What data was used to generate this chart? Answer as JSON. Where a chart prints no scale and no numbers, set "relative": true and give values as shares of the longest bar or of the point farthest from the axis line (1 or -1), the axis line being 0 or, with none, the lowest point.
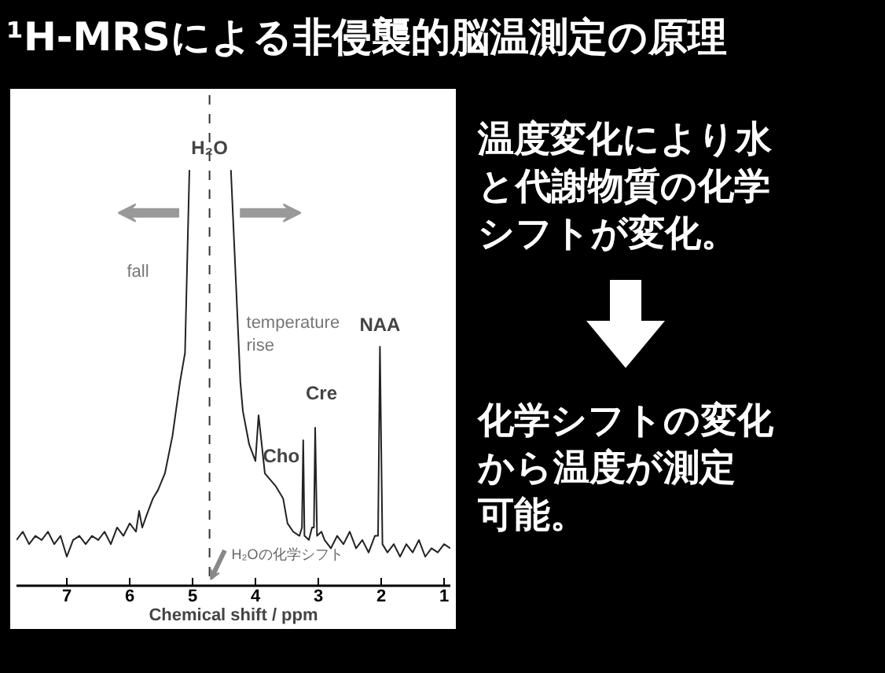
{
  "chart_data": {
    "type": "line",
    "title": "¹H-MRSによる非侵襲的脳温測定の原理",
    "xlabel": "Chemical shift / ppm",
    "relative": true,
    "xlim": [
      7.8,
      0.9
    ],
    "xticks": [
      7,
      6,
      5,
      4,
      3,
      2,
      1
    ],
    "tick_labels": "x",
    "grid": false,
    "marker": "none",
    "line_style": "solid",
    "x": [
      7.8,
      7.7,
      7.6,
      7.5,
      7.4,
      7.3,
      7.2,
      7.1,
      7.0,
      6.9,
      6.8,
      6.7,
      6.6,
      6.5,
      6.4,
      6.3,
      6.2,
      6.1,
      6.0,
      5.9,
      5.85,
      5.8,
      5.73,
      5.63,
      5.55,
      5.44,
      5.32,
      5.2,
      5.12,
      5.05,
      4.72,
      4.39,
      4.24,
      4.2,
      4.1,
      4.0,
      3.95,
      3.85,
      3.68,
      3.56,
      3.49,
      3.4,
      3.3,
      3.26,
      3.24,
      3.22,
      3.15,
      3.1,
      3.07,
      3.05,
      3.02,
      2.95,
      2.9,
      2.8,
      2.7,
      2.6,
      2.5,
      2.4,
      2.3,
      2.2,
      2.1,
      2.05,
      2.02,
      1.98,
      1.9,
      1.8,
      1.7,
      1.6,
      1.5,
      1.4,
      1.3,
      1.2,
      1.1,
      1.0,
      0.9
    ],
    "values": [
      0.11,
      0.13,
      0.1,
      0.12,
      0.11,
      0.13,
      0.1,
      0.12,
      0.07,
      0.11,
      0.12,
      0.1,
      0.12,
      0.11,
      0.13,
      0.1,
      0.14,
      0.12,
      0.15,
      0.13,
      0.18,
      0.14,
      0.17,
      0.21,
      0.23,
      0.27,
      0.36,
      0.49,
      0.56,
      1.0,
      null,
      1.0,
      0.49,
      0.42,
      0.34,
      0.3,
      0.41,
      0.27,
      0.24,
      0.21,
      0.15,
      0.13,
      0.12,
      0.14,
      0.35,
      0.12,
      0.11,
      0.14,
      0.14,
      0.38,
      0.12,
      0.13,
      0.11,
      0.09,
      0.12,
      0.1,
      0.13,
      0.09,
      0.11,
      0.08,
      0.12,
      0.12,
      0.575,
      0.1,
      0.08,
      0.1,
      0.07,
      0.1,
      0.08,
      0.11,
      0.07,
      0.09,
      0.08,
      0.1,
      0.09
    ],
    "color": "#222222",
    "ref_lines": [
      {
        "axis": "x",
        "value": 4.73,
        "line_style": "dashed",
        "color": "#333333"
      }
    ],
    "annotations": [
      {
        "text": "H₂O",
        "x": 4.73,
        "y": 1.0
      },
      {
        "text": "NAA",
        "x": 2.02,
        "y": 0.575
      },
      {
        "text": "Cho",
        "x": 3.24,
        "y": 0.35
      },
      {
        "text": "Cre",
        "x": 3.05,
        "y": 0.38
      },
      {
        "text": "H₂Oの化学シフト",
        "x": 4.73,
        "y": 0.05
      },
      "fall",
      "temperature\nrise",
      "温度変化により水",
      "と代謝物質の化学",
      "シフトが変化。",
      "化学シフトの変化",
      "から温度が測定",
      "可能。"
    ]
  }
}
